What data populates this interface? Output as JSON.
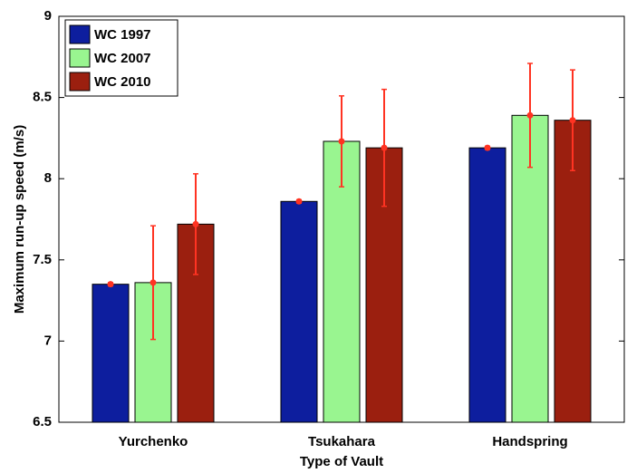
{
  "chart_data": {
    "type": "bar",
    "x_label": "Type of Vault",
    "y_label": "Maximum run-up speed (m/s)",
    "categories": [
      "Yurchenko",
      "Tsukahara",
      "Handspring"
    ],
    "series": [
      {
        "name": "WC 1997",
        "color": "#0d1e9e",
        "values": [
          7.35,
          7.86,
          8.19
        ],
        "errors": [
          0.01,
          0.01,
          0.01
        ]
      },
      {
        "name": "WC 2007",
        "color": "#99f590",
        "values": [
          7.36,
          8.23,
          8.39
        ],
        "errors": [
          0.35,
          0.28,
          0.32
        ]
      },
      {
        "name": "WC 2010",
        "color": "#9b1f0f",
        "values": [
          7.72,
          8.19,
          8.36
        ],
        "errors": [
          0.31,
          0.36,
          0.31
        ]
      }
    ],
    "error_color": "#ff3322",
    "ylim": [
      6.5,
      9
    ],
    "yticks": [
      6.5,
      7,
      7.5,
      8,
      8.5,
      9
    ],
    "legend": "upper left",
    "grid": false
  }
}
